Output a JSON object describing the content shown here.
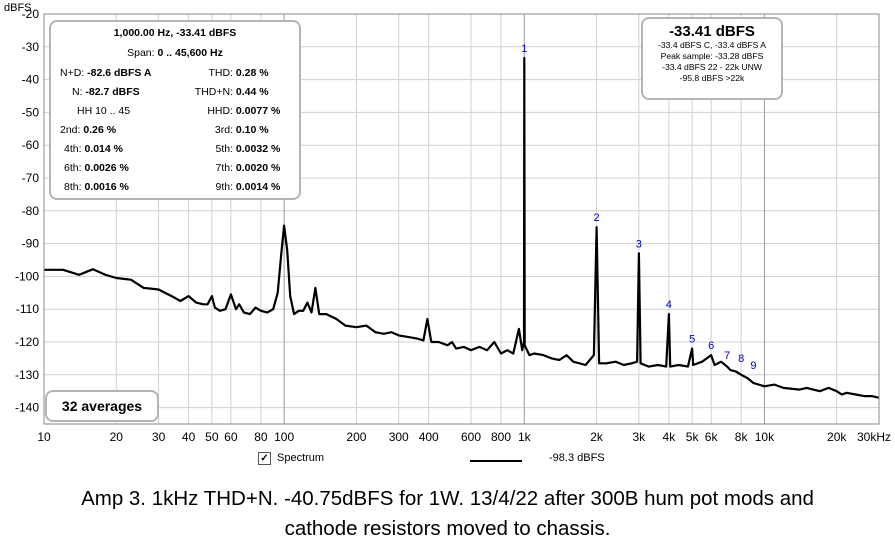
{
  "chart_data": {
    "type": "line",
    "ylabel": "dBFS",
    "ylim": [
      -145,
      -20
    ],
    "xlim": [
      10,
      30000
    ],
    "x_scale": "log",
    "y_ticks": [
      -20,
      -30,
      -40,
      -50,
      -60,
      -70,
      -80,
      -90,
      -100,
      -110,
      -120,
      -130,
      -140
    ],
    "x_ticks": [
      {
        "v": 10,
        "label": "10"
      },
      {
        "v": 20,
        "label": "20"
      },
      {
        "v": 30,
        "label": "30"
      },
      {
        "v": 40,
        "label": "40"
      },
      {
        "v": 50,
        "label": "50"
      },
      {
        "v": 60,
        "label": "60"
      },
      {
        "v": 80,
        "label": "80"
      },
      {
        "v": 100,
        "label": "100"
      },
      {
        "v": 200,
        "label": "200"
      },
      {
        "v": 300,
        "label": "300"
      },
      {
        "v": 400,
        "label": "400"
      },
      {
        "v": 600,
        "label": "600"
      },
      {
        "v": 800,
        "label": "800"
      },
      {
        "v": 1000,
        "label": "1k"
      },
      {
        "v": 2000,
        "label": "2k"
      },
      {
        "v": 3000,
        "label": "3k"
      },
      {
        "v": 4000,
        "label": "4k"
      },
      {
        "v": 5000,
        "label": "5k"
      },
      {
        "v": 6000,
        "label": "6k"
      },
      {
        "v": 8000,
        "label": "8k"
      },
      {
        "v": 10000,
        "label": "10k"
      },
      {
        "v": 20000,
        "label": "20k"
      },
      {
        "v": 30000,
        "label": "30kHz"
      }
    ],
    "grid": true,
    "series": [
      {
        "name": "Spectrum",
        "points": [
          [
            10,
            -98
          ],
          [
            12,
            -98
          ],
          [
            14,
            -99.5
          ],
          [
            16,
            -97.8
          ],
          [
            18,
            -99.5
          ],
          [
            20,
            -100.5
          ],
          [
            23,
            -101
          ],
          [
            26,
            -103.5
          ],
          [
            30,
            -104
          ],
          [
            34,
            -106
          ],
          [
            37,
            -107.5
          ],
          [
            40,
            -106
          ],
          [
            43,
            -108
          ],
          [
            46,
            -108.5
          ],
          [
            48,
            -108.5
          ],
          [
            50,
            -106
          ],
          [
            51.5,
            -109.5
          ],
          [
            54,
            -110.5
          ],
          [
            57,
            -110
          ],
          [
            60,
            -105.5
          ],
          [
            63,
            -110
          ],
          [
            65,
            -108.5
          ],
          [
            68,
            -111
          ],
          [
            72,
            -111.5
          ],
          [
            76,
            -109.5
          ],
          [
            80,
            -110.5
          ],
          [
            85,
            -111
          ],
          [
            90,
            -110
          ],
          [
            94,
            -105
          ],
          [
            97,
            -94
          ],
          [
            100,
            -84.5
          ],
          [
            103,
            -92
          ],
          [
            106,
            -106
          ],
          [
            110,
            -111.5
          ],
          [
            115,
            -110.5
          ],
          [
            120,
            -110.5
          ],
          [
            125,
            -108
          ],
          [
            130,
            -111
          ],
          [
            135,
            -103.5
          ],
          [
            140,
            -111.5
          ],
          [
            150,
            -111.5
          ],
          [
            165,
            -113
          ],
          [
            180,
            -115
          ],
          [
            200,
            -115.5
          ],
          [
            220,
            -115
          ],
          [
            240,
            -117
          ],
          [
            260,
            -117.5
          ],
          [
            280,
            -117
          ],
          [
            300,
            -118
          ],
          [
            330,
            -118.5
          ],
          [
            360,
            -119
          ],
          [
            380,
            -119.5
          ],
          [
            395,
            -113
          ],
          [
            410,
            -120
          ],
          [
            440,
            -120
          ],
          [
            480,
            -121
          ],
          [
            500,
            -120
          ],
          [
            520,
            -122
          ],
          [
            560,
            -121.5
          ],
          [
            600,
            -122.5
          ],
          [
            650,
            -121.5
          ],
          [
            700,
            -122.5
          ],
          [
            750,
            -120
          ],
          [
            800,
            -123.5
          ],
          [
            850,
            -122.5
          ],
          [
            900,
            -123.5
          ],
          [
            950,
            -116
          ],
          [
            980,
            -122.5
          ],
          [
            997,
            -120
          ],
          [
            1000,
            -33.4
          ],
          [
            1004,
            -121
          ],
          [
            1050,
            -124
          ],
          [
            1100,
            -123.5
          ],
          [
            1200,
            -124
          ],
          [
            1300,
            -125
          ],
          [
            1400,
            -125.5
          ],
          [
            1500,
            -124
          ],
          [
            1600,
            -126
          ],
          [
            1800,
            -127
          ],
          [
            1950,
            -124
          ],
          [
            2000,
            -85
          ],
          [
            2050,
            -126.5
          ],
          [
            2200,
            -126.5
          ],
          [
            2400,
            -126
          ],
          [
            2600,
            -127
          ],
          [
            2800,
            -126.5
          ],
          [
            2950,
            -126
          ],
          [
            3000,
            -93
          ],
          [
            3050,
            -126.5
          ],
          [
            3300,
            -127.5
          ],
          [
            3600,
            -127
          ],
          [
            3900,
            -127.5
          ],
          [
            4000,
            -111.5
          ],
          [
            4050,
            -127.5
          ],
          [
            4400,
            -127
          ],
          [
            4800,
            -127.5
          ],
          [
            5000,
            -122
          ],
          [
            5050,
            -127
          ],
          [
            5500,
            -126
          ],
          [
            6000,
            -124
          ],
          [
            6200,
            -127
          ],
          [
            6600,
            -126
          ],
          [
            7000,
            -127.5
          ],
          [
            7200,
            -128.5
          ],
          [
            7600,
            -129
          ],
          [
            8000,
            -130
          ],
          [
            8500,
            -131
          ],
          [
            9000,
            -132.5
          ],
          [
            10000,
            -133.5
          ],
          [
            11000,
            -133
          ],
          [
            12000,
            -134
          ],
          [
            14000,
            -134.5
          ],
          [
            15000,
            -134
          ],
          [
            17000,
            -135
          ],
          [
            18500,
            -134
          ],
          [
            20000,
            -135
          ],
          [
            21000,
            -136
          ],
          [
            22000,
            -135.5
          ],
          [
            24000,
            -136
          ],
          [
            26000,
            -136.5
          ],
          [
            28000,
            -136.5
          ],
          [
            30000,
            -137
          ]
        ]
      }
    ],
    "harmonic_labels": [
      {
        "label": "1",
        "freq": 1000,
        "level": -33.4
      },
      {
        "label": "2",
        "freq": 2000,
        "level": -85
      },
      {
        "label": "3",
        "freq": 3000,
        "level": -93
      },
      {
        "label": "4",
        "freq": 4000,
        "level": -111.5
      },
      {
        "label": "5",
        "freq": 5000,
        "level": -122
      },
      {
        "label": "6",
        "freq": 6000,
        "level": -124
      },
      {
        "label": "7",
        "freq": 7000,
        "level": -127
      },
      {
        "label": "8",
        "freq": 8000,
        "level": -128
      },
      {
        "label": "9",
        "freq": 9000,
        "level": -130
      }
    ]
  },
  "stats_box": {
    "header1": "1,000.00 Hz, -33.41 dBFS",
    "span_label": "Span: ",
    "span_value": "0 .. 45,600 Hz",
    "rows": [
      {
        "l_label": "N+D:",
        "l_value": "-82.6 dBFS A",
        "r_label": "THD:",
        "r_value": "0.28 %"
      },
      {
        "l_label": "N:",
        "l_value": "-82.7 dBFS",
        "r_label": "THD+N:",
        "r_value": "0.44 %"
      },
      {
        "l_label": "HH 10 .. 45",
        "l_value": "",
        "r_label": "HHD:",
        "r_value": "0.0077 %"
      },
      {
        "l_label": "2nd:",
        "l_value": "0.26 %",
        "r_label": "3rd:",
        "r_value": "0.10 %"
      },
      {
        "l_label": "4th:",
        "l_value": "0.014 %",
        "r_label": "5th:",
        "r_value": "0.0032 %"
      },
      {
        "l_label": "6th:",
        "l_value": "0.0026 %",
        "r_label": "7th:",
        "r_value": "0.0020 %"
      },
      {
        "l_label": "8th:",
        "l_value": "0.0016 %",
        "r_label": "9th:",
        "r_value": "0.0014 %"
      }
    ]
  },
  "level_box": {
    "main": "-33.41 dBFS",
    "lines": [
      "-33.4 dBFS C, -33.4 dBFS A",
      "Peak sample: -33.28 dBFS",
      "-33.4 dBFS 22 - 22k UNW",
      "-95.8 dBFS >22k"
    ]
  },
  "averages_label": "32 averages",
  "legend": {
    "checkbox_label": "Spectrum",
    "checked_mark": "✓",
    "value": "-98.3 dBFS"
  },
  "caption": {
    "line1": "Amp 3. 1kHz THD+N. -40.75dBFS for 1W. 13/4/22 after 300B hum pot mods and",
    "line2": "cathode resistors moved to chassis."
  },
  "colors": {
    "trace": "#000000",
    "grid": "#d0d0d0",
    "harmonic_label": "#0000c8",
    "box_border": "#b4b4b4"
  }
}
